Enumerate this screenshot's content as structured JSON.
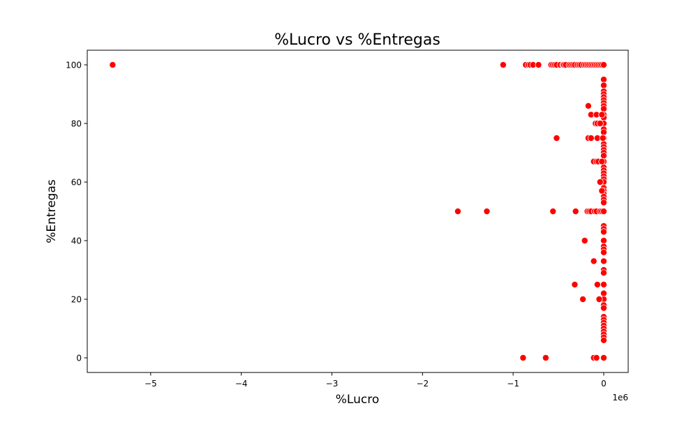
{
  "chart_data": {
    "type": "scatter",
    "title": "%Lucro vs %Entregas",
    "xlabel": "%Lucro",
    "ylabel": "%Entregas",
    "x_offset_label": "1e6",
    "xlim": [
      -5.7,
      0.27
    ],
    "ylim": [
      -5,
      105
    ],
    "xticks": [
      -5,
      -4,
      -3,
      -2,
      -1,
      0
    ],
    "xtick_labels": [
      "−5",
      "−4",
      "−3",
      "−2",
      "−1",
      "0"
    ],
    "yticks": [
      0,
      20,
      40,
      60,
      80,
      100
    ],
    "ytick_labels": [
      "0",
      "20",
      "40",
      "60",
      "80",
      "100"
    ],
    "grid": false,
    "color": "#ff0000",
    "edge_color": "#ffffff",
    "series": [
      {
        "points": [
          [
            -5.42,
            100
          ],
          [
            -1.11,
            100
          ],
          [
            -0.86,
            100
          ],
          [
            -0.83,
            100
          ],
          [
            -0.81,
            100
          ],
          [
            -0.78,
            100
          ],
          [
            -0.72,
            100
          ],
          [
            -0.58,
            100
          ],
          [
            -0.56,
            100
          ],
          [
            -0.54,
            100
          ],
          [
            -0.52,
            100
          ],
          [
            -0.48,
            100
          ],
          [
            -0.45,
            100
          ],
          [
            -0.44,
            100
          ],
          [
            -0.42,
            100
          ],
          [
            -0.38,
            100
          ],
          [
            -0.36,
            100
          ],
          [
            -0.34,
            100
          ],
          [
            -0.32,
            100
          ],
          [
            -0.29,
            100
          ],
          [
            -0.27,
            100
          ],
          [
            -0.25,
            100
          ],
          [
            -0.22,
            100
          ],
          [
            -0.2,
            100
          ],
          [
            -0.18,
            100
          ],
          [
            -0.16,
            100
          ],
          [
            -0.14,
            100
          ],
          [
            -0.12,
            100
          ],
          [
            -0.1,
            100
          ],
          [
            -0.08,
            100
          ],
          [
            -0.06,
            100
          ],
          [
            -0.04,
            100
          ],
          [
            -0.02,
            100
          ],
          [
            0.0,
            100
          ],
          [
            0.0,
            95
          ],
          [
            0.0,
            93
          ],
          [
            0.0,
            91
          ],
          [
            0.0,
            90
          ],
          [
            0.0,
            89
          ],
          [
            0.0,
            88
          ],
          [
            0.0,
            87
          ],
          [
            0.0,
            86
          ],
          [
            0.0,
            85
          ],
          [
            0.0,
            83
          ],
          [
            0.0,
            82
          ],
          [
            0.0,
            80
          ],
          [
            0.0,
            78
          ],
          [
            0.0,
            77
          ],
          [
            0.0,
            75
          ],
          [
            0.0,
            73
          ],
          [
            0.0,
            72
          ],
          [
            0.0,
            71
          ],
          [
            0.0,
            70
          ],
          [
            0.0,
            69
          ],
          [
            0.0,
            67
          ],
          [
            0.0,
            65
          ],
          [
            0.0,
            64
          ],
          [
            0.0,
            63
          ],
          [
            0.0,
            62
          ],
          [
            0.0,
            61
          ],
          [
            0.0,
            60
          ],
          [
            0.0,
            58
          ],
          [
            0.0,
            57
          ],
          [
            0.0,
            56
          ],
          [
            0.0,
            55
          ],
          [
            0.0,
            54
          ],
          [
            0.0,
            53
          ],
          [
            -0.17,
            86
          ],
          [
            -0.14,
            83
          ],
          [
            -0.08,
            83
          ],
          [
            -0.02,
            83
          ],
          [
            -0.09,
            80
          ],
          [
            -0.07,
            80
          ],
          [
            -0.04,
            80
          ],
          [
            -0.52,
            75
          ],
          [
            -0.17,
            75
          ],
          [
            -0.14,
            75
          ],
          [
            -0.07,
            75
          ],
          [
            -0.01,
            75
          ],
          [
            -0.11,
            67
          ],
          [
            -0.08,
            67
          ],
          [
            -0.06,
            67
          ],
          [
            -0.02,
            67
          ],
          [
            -0.04,
            60
          ],
          [
            -0.02,
            57
          ],
          [
            -1.61,
            50
          ],
          [
            -1.29,
            50
          ],
          [
            -0.56,
            50
          ],
          [
            -0.31,
            50
          ],
          [
            -0.18,
            50
          ],
          [
            -0.16,
            50
          ],
          [
            -0.14,
            50
          ],
          [
            -0.1,
            50
          ],
          [
            -0.08,
            50
          ],
          [
            -0.04,
            50
          ],
          [
            -0.02,
            50
          ],
          [
            0.0,
            50
          ],
          [
            0.0,
            45
          ],
          [
            0.0,
            44
          ],
          [
            0.0,
            43
          ],
          [
            0.0,
            40
          ],
          [
            0.0,
            38
          ],
          [
            0.0,
            37
          ],
          [
            0.0,
            36
          ],
          [
            0.0,
            33
          ],
          [
            0.0,
            30
          ],
          [
            0.0,
            29
          ],
          [
            0.0,
            25
          ],
          [
            0.0,
            22
          ],
          [
            0.0,
            20
          ],
          [
            0.0,
            18
          ],
          [
            0.0,
            17
          ],
          [
            0.0,
            14
          ],
          [
            0.0,
            13
          ],
          [
            0.0,
            12
          ],
          [
            0.0,
            11
          ],
          [
            0.0,
            10
          ],
          [
            0.0,
            9
          ],
          [
            0.0,
            8
          ],
          [
            0.0,
            7
          ],
          [
            0.0,
            6
          ],
          [
            0.0,
            0
          ],
          [
            -0.21,
            40
          ],
          [
            -0.11,
            33
          ],
          [
            -0.32,
            25
          ],
          [
            -0.07,
            25
          ],
          [
            -0.23,
            20
          ],
          [
            -0.05,
            20
          ],
          [
            -0.89,
            0
          ],
          [
            -0.64,
            0
          ],
          [
            -0.11,
            0
          ],
          [
            -0.08,
            0
          ]
        ]
      }
    ]
  }
}
